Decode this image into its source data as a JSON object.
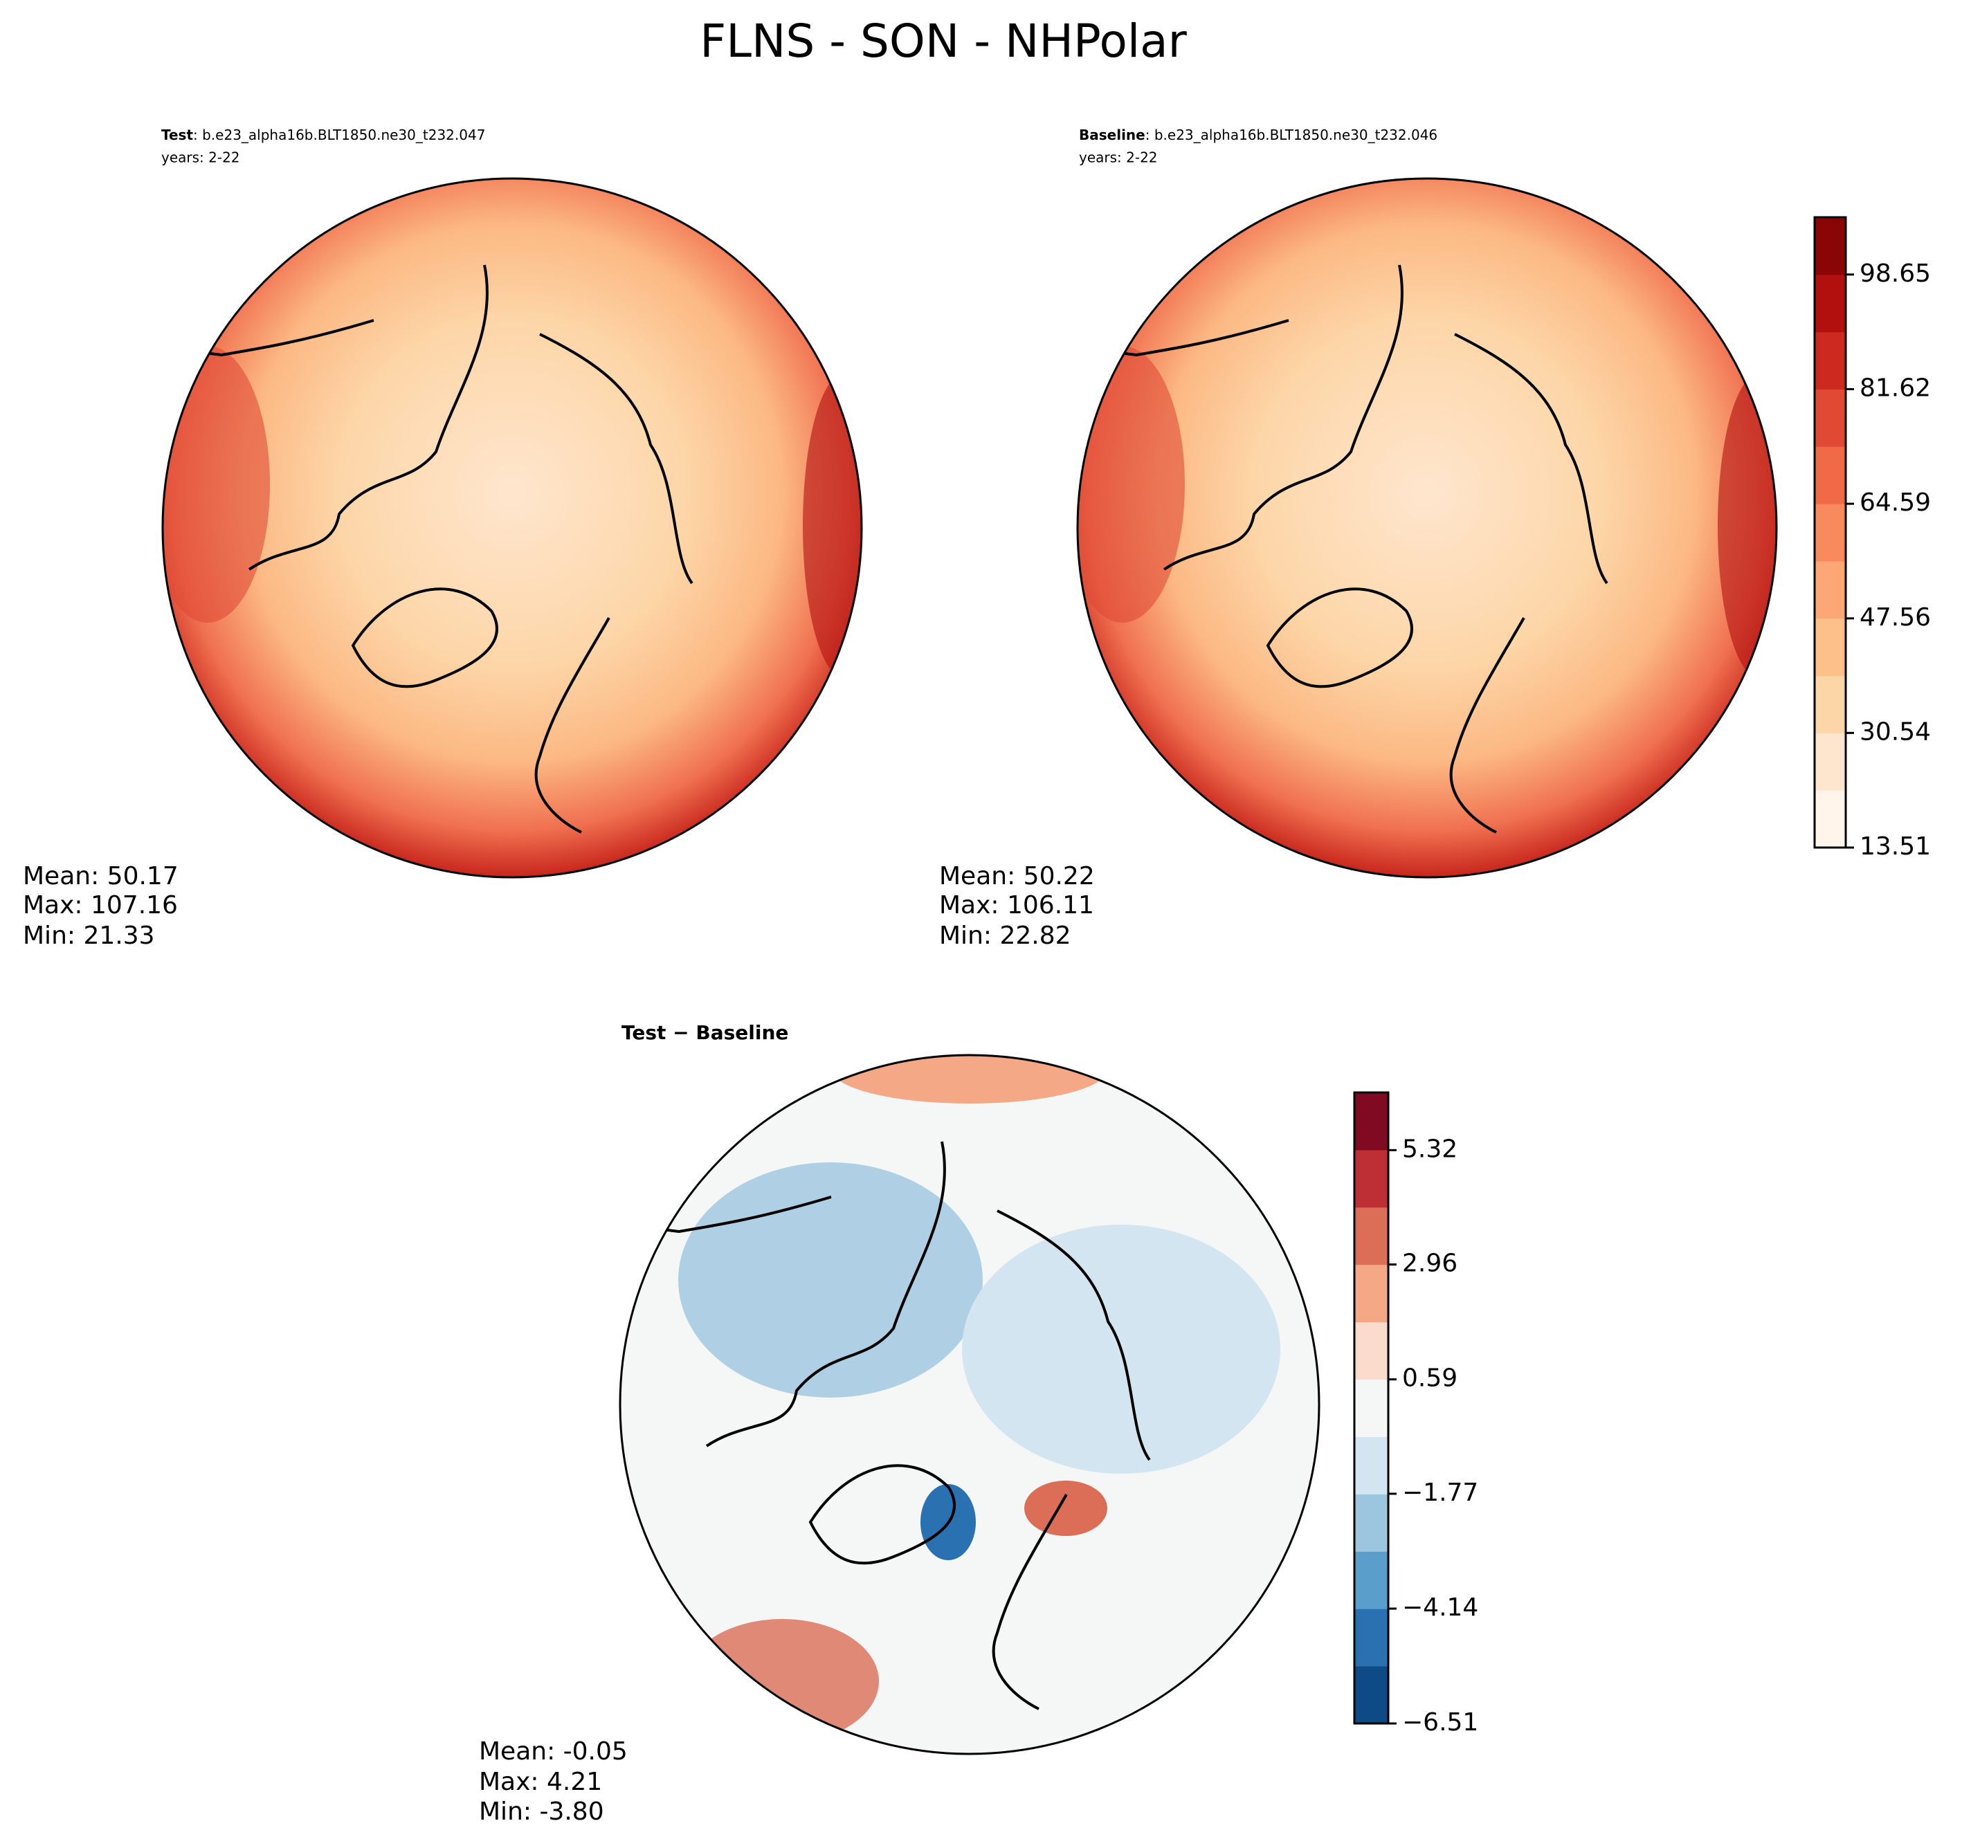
{
  "title": "FLNS - SON - NHPolar",
  "panels": [
    {
      "label": "Test",
      "case": ": b.e23_alpha16b.BLT1850.ne30_t232.047",
      "years": "years: 2-22",
      "stats": [
        "Mean: 50.17",
        "Max: 107.16",
        "Min: 21.33"
      ]
    },
    {
      "label": "Baseline",
      "case": ": b.e23_alpha16b.BLT1850.ne30_t232.046",
      "years": "years: 2-22",
      "stats": [
        "Mean: 50.22",
        "Max: 106.11",
        "Min: 22.82"
      ]
    },
    {
      "label": "Test − Baseline",
      "stats": [
        "Mean: -0.05",
        "Max:  4.21",
        "Min: -3.80"
      ]
    }
  ],
  "colorbars": [
    {
      "ylim": [
        13.51,
        107.16
      ],
      "yticks": [
        13.51,
        30.54,
        47.56,
        64.59,
        81.62,
        98.65
      ],
      "colors": [
        "#fff5eb",
        "#fee6ce",
        "#fdd6a8",
        "#fdc08b",
        "#fca775",
        "#f98a5d",
        "#f06a48",
        "#e04a35",
        "#cc2a1e",
        "#b20f0f",
        "#8a0606"
      ]
    },
    {
      "ylim": [
        -6.51,
        6.51
      ],
      "yticks": [
        {
          "value": -6.51,
          "label": "−6.51"
        },
        {
          "value": -4.14,
          "label": "−4.14"
        },
        {
          "value": -1.77,
          "label": "−1.77"
        },
        0.59,
        2.96,
        5.32
      ],
      "colors": [
        "#0e4a86",
        "#2a71b2",
        "#5a9ecb",
        "#9cc6e0",
        "#d3e5f0",
        "#f5f6f6",
        "#fbdccc",
        "#f4a886",
        "#dc6e57",
        "#bd2e35",
        "#7f0a22"
      ]
    }
  ]
}
